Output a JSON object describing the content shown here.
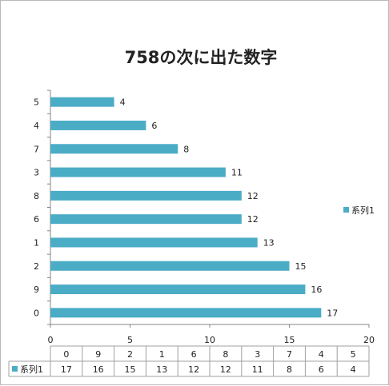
{
  "chart_data": {
    "type": "bar",
    "orientation": "horizontal",
    "title": "758の次に出た数字",
    "categories": [
      "0",
      "9",
      "2",
      "1",
      "6",
      "8",
      "3",
      "7",
      "4",
      "5"
    ],
    "series": [
      {
        "name": "系列1",
        "values": [
          17,
          16,
          15,
          13,
          12,
          12,
          11,
          8,
          6,
          4
        ],
        "color": "#4bacc6"
      }
    ],
    "xlim": [
      0,
      20
    ],
    "x_ticks": [
      "0",
      "5",
      "10",
      "15",
      "20"
    ],
    "grid": false,
    "legend": "right",
    "data_table": true
  }
}
